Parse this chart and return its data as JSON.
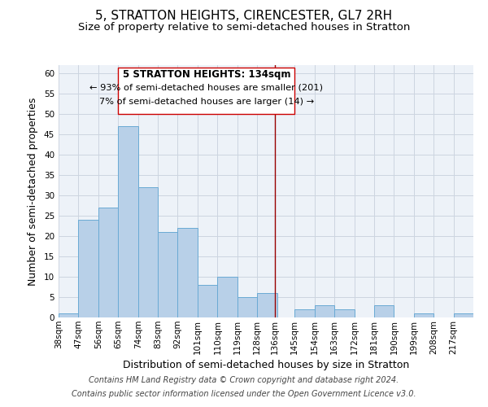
{
  "title": "5, STRATTON HEIGHTS, CIRENCESTER, GL7 2RH",
  "subtitle": "Size of property relative to semi-detached houses in Stratton",
  "xlabel": "Distribution of semi-detached houses by size in Stratton",
  "ylabel": "Number of semi-detached properties",
  "footer_line1": "Contains HM Land Registry data © Crown copyright and database right 2024.",
  "footer_line2": "Contains public sector information licensed under the Open Government Licence v3.0.",
  "bin_labels": [
    "38sqm",
    "47sqm",
    "56sqm",
    "65sqm",
    "74sqm",
    "83sqm",
    "92sqm",
    "101sqm",
    "110sqm",
    "119sqm",
    "128sqm",
    "136sqm",
    "145sqm",
    "154sqm",
    "163sqm",
    "172sqm",
    "181sqm",
    "190sqm",
    "199sqm",
    "208sqm",
    "217sqm"
  ],
  "bar_heights": [
    1,
    24,
    27,
    47,
    32,
    21,
    22,
    8,
    10,
    5,
    6,
    0,
    2,
    3,
    2,
    0,
    3,
    0,
    1,
    0,
    1
  ],
  "bar_color": "#b8d0e8",
  "bar_edge_color": "#6aaad4",
  "ylim": [
    0,
    62
  ],
  "yticks": [
    0,
    5,
    10,
    15,
    20,
    25,
    30,
    35,
    40,
    45,
    50,
    55,
    60
  ],
  "property_label": "5 STRATTON HEIGHTS: 134sqm",
  "pct_smaller": 93,
  "n_smaller": 201,
  "pct_larger": 7,
  "n_larger": 14,
  "grid_color": "#ccd5e0",
  "background_color": "#edf2f8",
  "vline_color": "#990000",
  "box_edge_color": "#cc0000",
  "title_fontsize": 11,
  "subtitle_fontsize": 9.5,
  "axis_label_fontsize": 9,
  "tick_fontsize": 7.5,
  "annotation_fontsize": 8.5,
  "footer_fontsize": 7,
  "bin_edges": [
    38,
    47,
    56,
    65,
    74,
    83,
    92,
    101,
    110,
    119,
    128,
    136,
    145,
    154,
    163,
    172,
    181,
    190,
    199,
    208,
    217,
    226
  ]
}
